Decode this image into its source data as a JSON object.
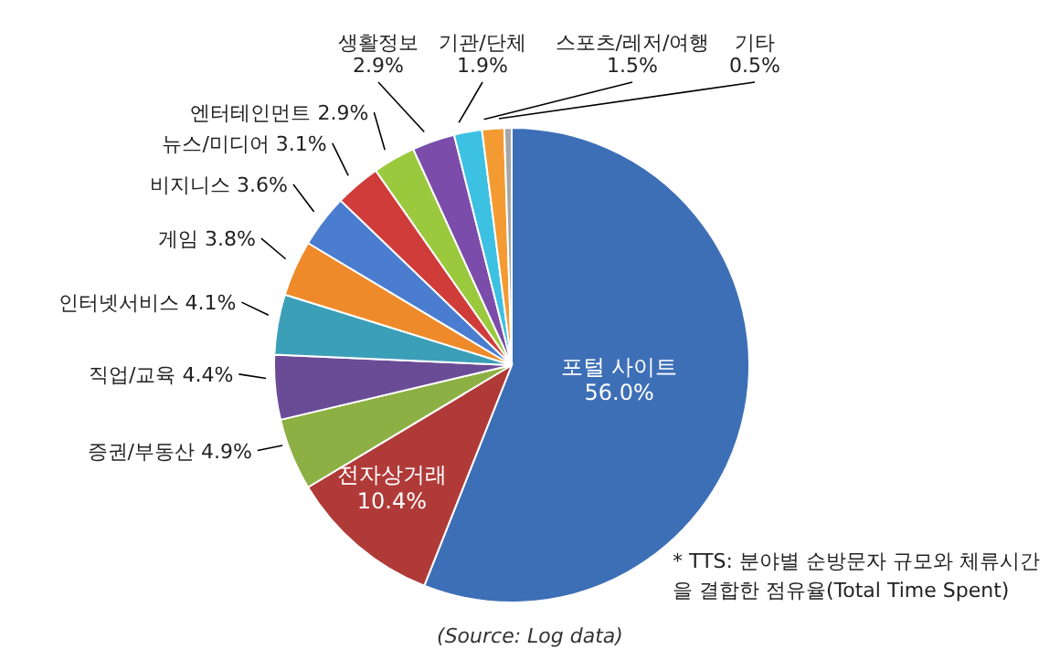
{
  "chart_data": {
    "type": "pie",
    "categories": [
      "포털 사이트",
      "전자상거래",
      "증권/부동산",
      "직업/교육",
      "인터넷서비스",
      "게임",
      "비지니스",
      "뉴스/미디어",
      "엔터테인먼트",
      "생활정보",
      "기관/단체",
      "스포츠/레저/여행",
      "기타"
    ],
    "values": [
      56.0,
      10.4,
      4.9,
      4.4,
      4.1,
      3.8,
      3.6,
      3.1,
      2.9,
      2.9,
      1.9,
      1.5,
      0.5
    ],
    "value_labels": [
      "56.0%",
      "10.4%",
      "4.9%",
      "4.4%",
      "4.1%",
      "3.8%",
      "3.6%",
      "3.1%",
      "2.9%",
      "2.9%",
      "1.9%",
      "1.5%",
      "0.5%"
    ],
    "colors": [
      "#3d6fb6",
      "#b03a38",
      "#8cb043",
      "#6a4c96",
      "#3b9fb8",
      "#ef8a2a",
      "#4a7ccf",
      "#cf3c3a",
      "#9bc93d",
      "#7b4ca9",
      "#3cc1e2",
      "#f39b32",
      "#a6a6a6"
    ],
    "annotations": [
      "* TTS: 분야별 순방문자 규모와 체류시간을 결합한 점유율(Total Time Spent)",
      "(Source: Log data)"
    ],
    "legend": false
  }
}
